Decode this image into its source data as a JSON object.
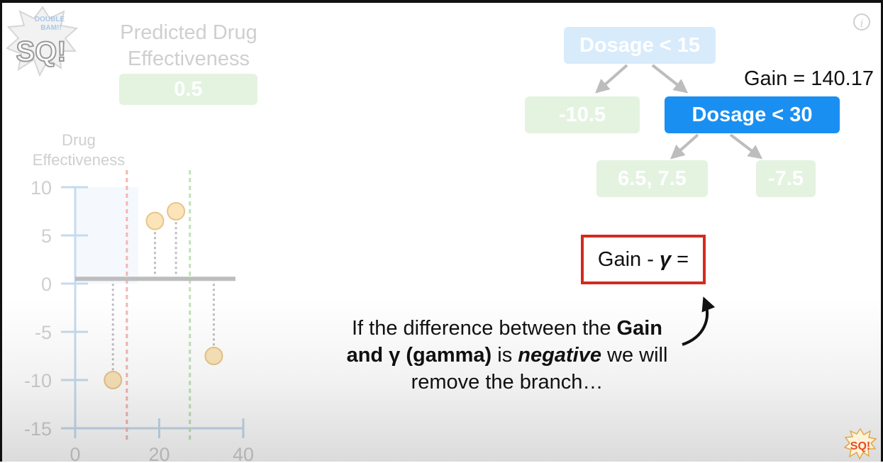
{
  "header": {
    "predicted_title_line1": "Predicted Drug",
    "predicted_title_line2": "Effectiveness",
    "predicted_value": "0.5",
    "info_icon_glyph": "i"
  },
  "logo": {
    "lines": [
      "DOUBLE",
      "BAM!!",
      "SQ!"
    ]
  },
  "tree": {
    "root": "Dosage < 15",
    "left_leaf": "-10.5",
    "active_node": "Dosage < 30",
    "leaf_a": "6.5, 7.5",
    "leaf_b": "-7.5",
    "gain_label": "Gain = 140.17"
  },
  "formula": {
    "prefix": "Gain - ",
    "gamma": "γ",
    "suffix": " ="
  },
  "caption": {
    "l1_pre": "If the difference between the ",
    "l1_bold": "Gain",
    "l2_bold": "and γ (gamma)",
    "l2_mid": " is ",
    "l2_italic": "negative",
    "l2_post": " we will",
    "l3": "remove the branch…"
  },
  "chart_data": {
    "type": "scatter",
    "ylabel_line1": "Drug",
    "ylabel_line2": "Effectiveness",
    "xlim": [
      0,
      40
    ],
    "ylim": [
      -15,
      10
    ],
    "xticks": [
      0,
      20,
      40
    ],
    "yticks": [
      10,
      5,
      0,
      -5,
      -10,
      -15
    ],
    "points": [
      {
        "x": 10,
        "y": -10
      },
      {
        "x": 20,
        "y": 6.5
      },
      {
        "x": 25,
        "y": 7.5
      },
      {
        "x": 34,
        "y": -7.5
      }
    ],
    "prediction": 0.5,
    "splits": [
      {
        "x": 15,
        "color": "#f4b6b0"
      },
      {
        "x": 30,
        "color": "#bfe3b8"
      }
    ],
    "colors": {
      "axis": "#c5dbee",
      "point_fill": "#fbe4b8",
      "point_stroke": "#e8c48d",
      "prediction_line": "#bdbdbd",
      "residual": "#bdbdbd",
      "tick_label": "#cfcfcf",
      "region": "#f5f8fd"
    }
  }
}
